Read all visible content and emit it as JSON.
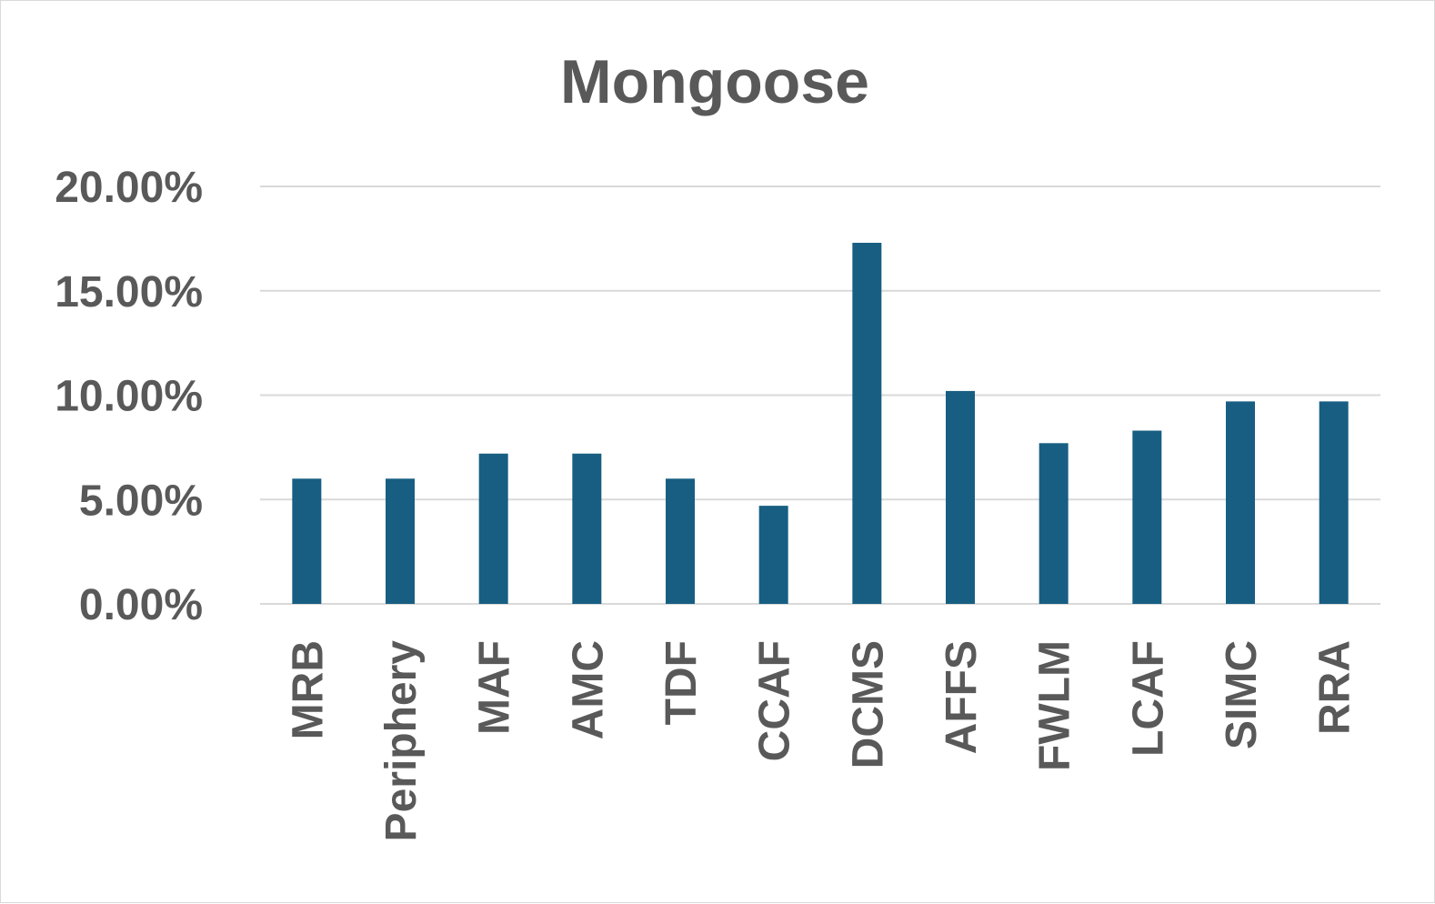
{
  "chart_data": {
    "type": "bar",
    "title": "Mongoose",
    "xlabel": "",
    "ylabel": "",
    "categories": [
      "MRB",
      "Periphery",
      "MAF",
      "AMC",
      "TDF",
      "CCAF",
      "DCMS",
      "AFFS",
      "FWLM",
      "LCAF",
      "SIMC",
      "RRA"
    ],
    "values": [
      6.0,
      6.0,
      7.2,
      7.2,
      6.0,
      4.7,
      17.3,
      10.2,
      7.7,
      8.3,
      9.7,
      9.7
    ],
    "ylim": [
      0,
      20
    ],
    "yticks": [
      0,
      5,
      10,
      15,
      20
    ],
    "ytick_labels": [
      "0.00%",
      "5.00%",
      "10.00%",
      "15.00%",
      "20.00%"
    ],
    "grid": true,
    "legend": "none",
    "bar_color": "#175e82"
  }
}
